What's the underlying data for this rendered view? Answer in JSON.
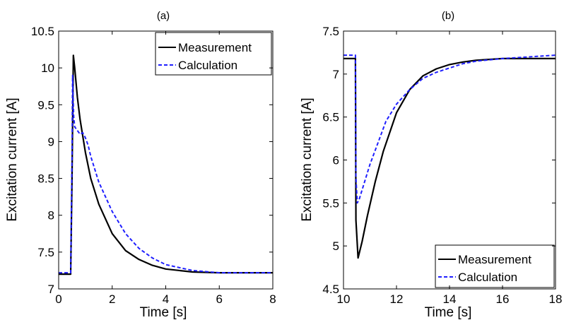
{
  "chart_data": [
    {
      "type": "line",
      "panel_label": "(a)",
      "xlabel": "Time [s]",
      "ylabel": "Excitation current [A]",
      "xlim": [
        0,
        8
      ],
      "ylim": [
        7,
        10.5
      ],
      "xticks": [
        0,
        2,
        4,
        6,
        8
      ],
      "xtick_labels": [
        "0",
        "2",
        "4",
        "6",
        "8"
      ],
      "yticks": [
        7,
        7.5,
        8,
        8.5,
        9,
        9.5,
        10,
        10.5
      ],
      "ytick_labels": [
        "7",
        "7.5",
        "8",
        "8.5",
        "9",
        "9.5",
        "10",
        "10.5"
      ],
      "legend_position": "top-right",
      "series": [
        {
          "name": "Measurement",
          "style": "solid",
          "color": "#000000",
          "x": [
            0,
            0.45,
            0.5,
            0.55,
            0.6,
            0.7,
            0.8,
            1.0,
            1.2,
            1.5,
            2.0,
            2.5,
            3.0,
            3.5,
            4.0,
            5.0,
            6.0,
            7.0,
            8.0
          ],
          "y": [
            7.2,
            7.2,
            8.5,
            10.17,
            10.0,
            9.6,
            9.3,
            8.85,
            8.5,
            8.15,
            7.75,
            7.52,
            7.4,
            7.32,
            7.27,
            7.23,
            7.22,
            7.22,
            7.22
          ]
        },
        {
          "name": "Calculation",
          "style": "dashed",
          "color": "#1f1fff",
          "x": [
            0,
            0.45,
            0.5,
            0.52,
            0.56,
            0.6,
            0.7,
            0.8,
            0.9,
            1.0,
            1.1,
            1.2,
            1.5,
            2.0,
            2.5,
            3.0,
            3.5,
            4.0,
            5.0,
            6.0,
            7.0,
            8.0
          ],
          "y": [
            7.22,
            7.22,
            8.8,
            9.9,
            9.35,
            9.2,
            9.15,
            9.1,
            9.12,
            9.05,
            8.95,
            8.8,
            8.45,
            8.05,
            7.75,
            7.55,
            7.42,
            7.33,
            7.25,
            7.22,
            7.22,
            7.22
          ]
        }
      ]
    },
    {
      "type": "line",
      "panel_label": "(b)",
      "xlabel": "Time [s]",
      "ylabel": "Excitation current [A]",
      "xlim": [
        10,
        18
      ],
      "ylim": [
        4.5,
        7.5
      ],
      "xticks": [
        10,
        12,
        14,
        16,
        18
      ],
      "xtick_labels": [
        "10",
        "12",
        "14",
        "16",
        "18"
      ],
      "yticks": [
        4.5,
        5,
        5.5,
        6,
        6.5,
        7,
        7.5
      ],
      "ytick_labels": [
        "4.5",
        "5",
        "5.5",
        "6",
        "6.5",
        "7",
        "7.5"
      ],
      "legend_position": "bottom-right",
      "series": [
        {
          "name": "Measurement",
          "style": "solid",
          "color": "#000000",
          "x": [
            10,
            10.45,
            10.47,
            10.55,
            10.7,
            10.9,
            11.2,
            11.5,
            12.0,
            12.5,
            13.0,
            13.5,
            14.0,
            14.5,
            15.0,
            16.0,
            17.0,
            18.0
          ],
          "y": [
            7.18,
            7.18,
            5.3,
            4.86,
            5.05,
            5.35,
            5.75,
            6.1,
            6.55,
            6.82,
            6.98,
            7.06,
            7.11,
            7.14,
            7.16,
            7.18,
            7.18,
            7.18
          ]
        },
        {
          "name": "Calculation",
          "style": "dashed",
          "color": "#1f1fff",
          "x": [
            10,
            10.45,
            10.47,
            10.52,
            10.6,
            10.8,
            11.0,
            11.3,
            11.6,
            12.0,
            12.5,
            13.0,
            13.5,
            14.0,
            14.5,
            15.0,
            16.0,
            17.0,
            18.0
          ],
          "y": [
            7.22,
            7.22,
            5.8,
            5.5,
            5.55,
            5.75,
            5.95,
            6.2,
            6.45,
            6.65,
            6.82,
            6.95,
            7.02,
            7.07,
            7.12,
            7.15,
            7.18,
            7.2,
            7.22
          ]
        }
      ]
    }
  ]
}
